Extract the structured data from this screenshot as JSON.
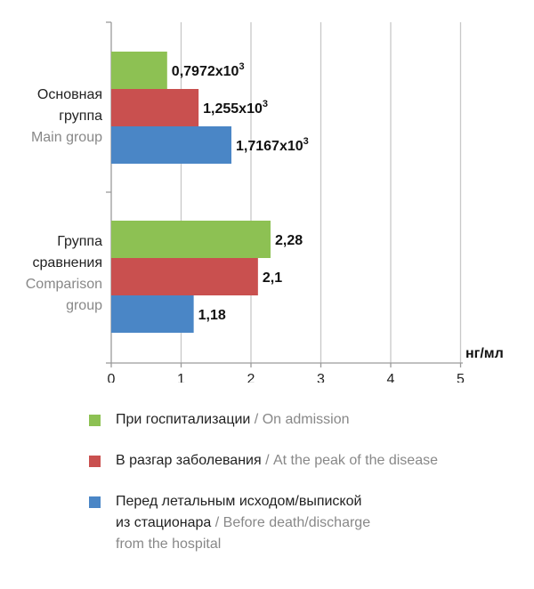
{
  "chart_data": {
    "type": "bar",
    "orientation": "horizontal",
    "categories": [
      {
        "ru": "Основная группа",
        "ru_lines": [
          "Основная",
          "группа"
        ],
        "en": "Main group",
        "en_lines": [
          "Main group"
        ]
      },
      {
        "ru": "Группа сравнения",
        "ru_lines": [
          "Группа",
          "сравнения"
        ],
        "en": "Comparison group",
        "en_lines": [
          "Comparison",
          "group"
        ]
      }
    ],
    "series": [
      {
        "name": "При госпитализации / On admission",
        "name_ru": "При госпитализации",
        "name_en": "On admission",
        "color": "#8dc153",
        "values": [
          0.8,
          2.28
        ],
        "labels": [
          "0,7972x10³",
          "2,28"
        ]
      },
      {
        "name": "В разгар заболевания / At the peak of the disease",
        "name_ru": "В разгар заболевания",
        "name_en": "At the peak of the disease",
        "color": "#c9504f",
        "values": [
          1.25,
          2.1
        ],
        "labels": [
          "1,255x10³",
          "2,1"
        ]
      },
      {
        "name": "Перед летальным исходом/выпиской из стационара / Before death/discharge from the hospital",
        "name_ru": "Перед летальным исходом/выпиской из стационара",
        "name_en": "Before death/discharge from the hospital",
        "name_ru_lines": [
          "Перед летальным исходом/выпиской",
          "из стационара"
        ],
        "name_en_lines": [
          "Before death/discharge",
          "from the hospital"
        ],
        "color": "#4a86c6",
        "values": [
          1.72,
          1.18
        ],
        "labels": [
          "1,7167x10³",
          "1,18"
        ]
      }
    ],
    "xlim": [
      0,
      5
    ],
    "xticks": [
      0,
      1,
      2,
      3,
      4,
      5
    ],
    "xunit": "нг/мл",
    "grid": true,
    "legend_position": "bottom"
  }
}
